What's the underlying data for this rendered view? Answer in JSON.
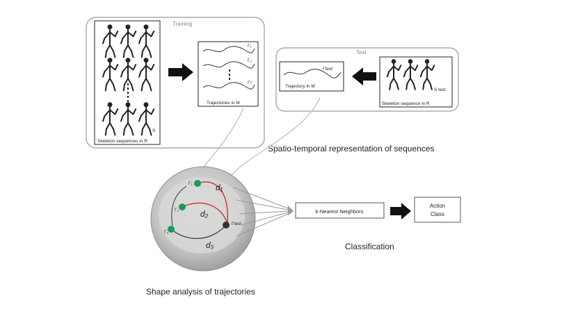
{
  "training_box": {
    "title": "Training",
    "skeleton_caption": "Skeleton sequences in R",
    "trajectory_caption": "Trajectories in M",
    "trajectory_labels": [
      "Γ₁",
      "Γ₂",
      "Γⁿ"
    ],
    "skeleton_label_top": "",
    "skeleton_label_bottom": "S"
  },
  "test_box": {
    "title": "Test",
    "skeleton_caption": "Skeleton sequence in R",
    "trajectory_caption": "Trajectory in M",
    "trajectory_label": "Γtest",
    "skeleton_label": "S test"
  },
  "spatio_caption": "Spatio-temporal representation of sequences",
  "manifold": {
    "distance_labels": [
      "d₁",
      "d₂",
      "d₃"
    ],
    "point_labels": [
      "Γ₁",
      "Γ₂",
      "Γ₃",
      "Γtest"
    ]
  },
  "knn_label": "k-Nearest Neighbors",
  "action_label": [
    "Action",
    "Class"
  ],
  "classification_caption": "Classification",
  "shape_caption": "Shape analysis of trajectories",
  "colors": {
    "manifold_outer": "#a8a8a8",
    "manifold_inner": "#d0d0d0",
    "train_point": "#1a9a5a",
    "test_point": "#333333",
    "geodesic": "#d03030"
  }
}
